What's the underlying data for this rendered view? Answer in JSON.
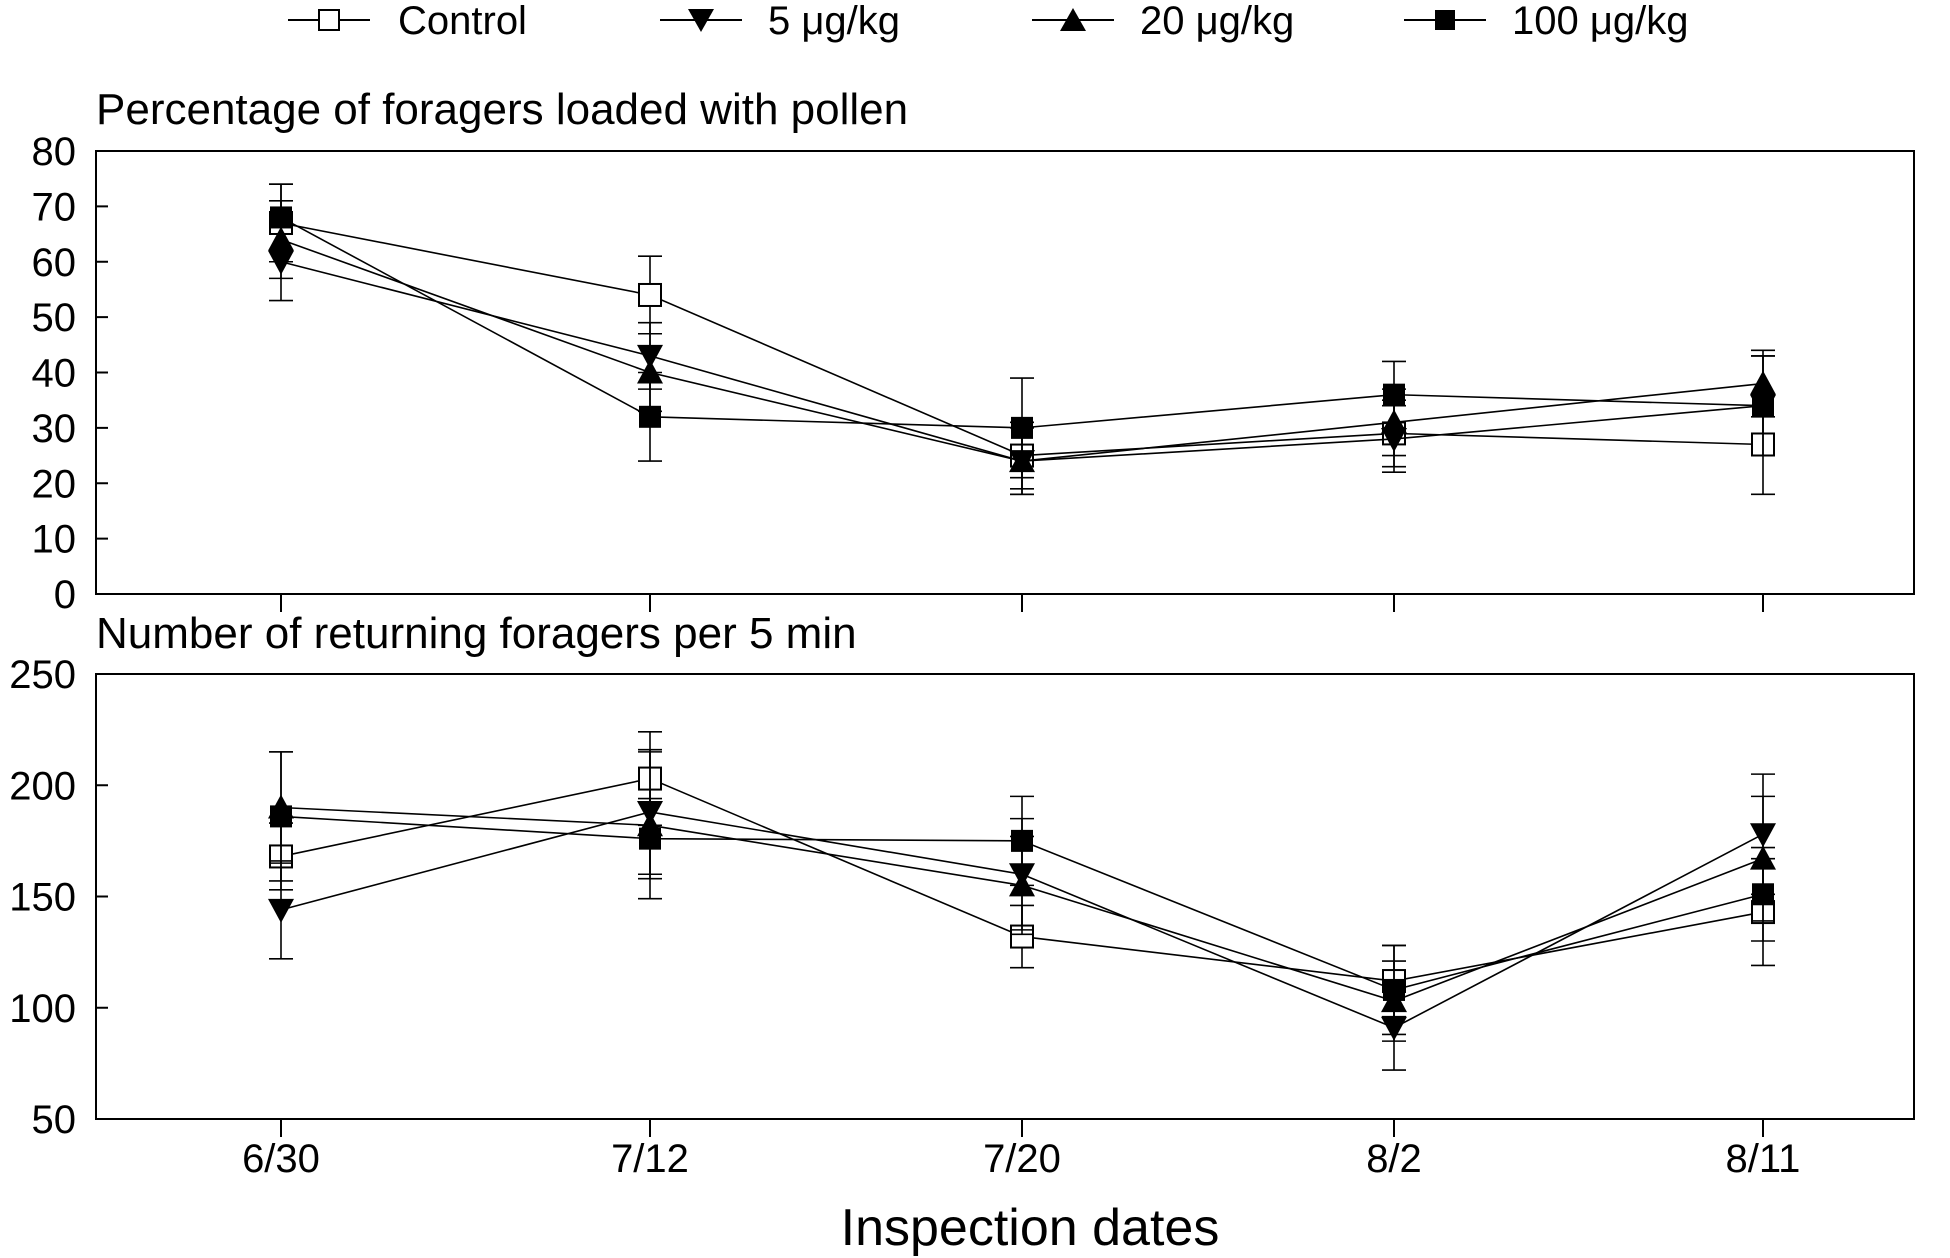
{
  "legend": {
    "position": "top",
    "entries": [
      {
        "label": "Control",
        "marker": "open-square"
      },
      {
        "label": "5 μg/kg",
        "marker": "filled-triangle-down"
      },
      {
        "label": "20 μg/kg",
        "marker": "filled-triangle-up"
      },
      {
        "label": "100 μg/kg",
        "marker": "filled-square"
      }
    ]
  },
  "xlabel": "Inspection dates",
  "chart_data": [
    {
      "type": "line",
      "title": "Percentage of foragers loaded with pollen",
      "categories": [
        "6/30",
        "7/12",
        "7/20",
        "8/2",
        "8/11"
      ],
      "ylim": [
        0,
        80
      ],
      "yticks": [
        0,
        10,
        20,
        30,
        40,
        50,
        60,
        70,
        80
      ],
      "grid": false,
      "error_bars": true,
      "series": [
        {
          "name": "Control",
          "marker": "open-square",
          "values": [
            67,
            54,
            25,
            29,
            27
          ],
          "errors": [
            7,
            7,
            6,
            6,
            9
          ]
        },
        {
          "name": "5 μg/kg",
          "marker": "filled-triangle-down",
          "values": [
            60,
            43,
            24,
            28,
            34
          ],
          "errors": [
            7,
            6,
            6,
            6,
            9
          ]
        },
        {
          "name": "20 μg/kg",
          "marker": "filled-triangle-up",
          "values": [
            64,
            40,
            24,
            31,
            38
          ],
          "errors": [
            7,
            7,
            6,
            6,
            6
          ]
        },
        {
          "name": "100 μg/kg",
          "marker": "filled-square",
          "values": [
            68,
            32,
            30,
            36,
            34
          ],
          "errors": [
            6,
            8,
            9,
            6,
            9
          ]
        }
      ]
    },
    {
      "type": "line",
      "title": "Number of returning foragers per 5 min",
      "categories": [
        "6/30",
        "7/12",
        "7/20",
        "8/2",
        "8/11"
      ],
      "ylim": [
        50,
        250
      ],
      "yticks": [
        50,
        100,
        150,
        200,
        250
      ],
      "grid": false,
      "error_bars": true,
      "series": [
        {
          "name": "Control",
          "marker": "open-square",
          "values": [
            168,
            203,
            132,
            112,
            143
          ],
          "errors": [
            15,
            21,
            14,
            16,
            24
          ]
        },
        {
          "name": "5 μg/kg",
          "marker": "filled-triangle-down",
          "values": [
            144,
            188,
            160,
            91,
            178
          ],
          "errors": [
            22,
            28,
            25,
            19,
            27
          ]
        },
        {
          "name": "20 μg/kg",
          "marker": "filled-triangle-up",
          "values": [
            190,
            182,
            155,
            103,
            167
          ],
          "errors": [
            25,
            33,
            22,
            18,
            28
          ]
        },
        {
          "name": "100 μg/kg",
          "marker": "filled-square",
          "values": [
            186,
            176,
            175,
            108,
            151
          ],
          "errors": [
            29,
            18,
            20,
            20,
            21
          ]
        }
      ]
    }
  ]
}
